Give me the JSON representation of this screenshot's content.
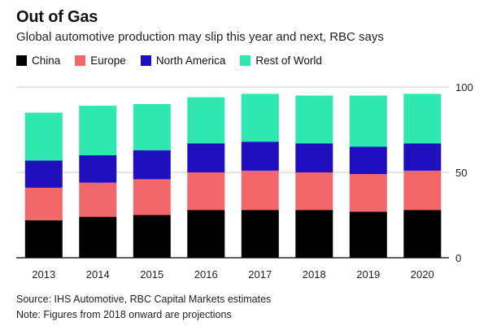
{
  "header": {
    "title": "Out of Gas",
    "subtitle": "Global automotive production may slip this year and next, RBC says"
  },
  "colors": {
    "China": "#000000",
    "Europe": "#f2686a",
    "North America": "#1f0fbf",
    "Rest of World": "#2ee8b0",
    "gridline": "#cccccc",
    "axis": "#000000"
  },
  "footer": {
    "source": "Source: IHS Automotive, RBC Capital Markets estimates",
    "note": "Note: Figures from 2018 onward are projections"
  },
  "chart_data": {
    "type": "bar",
    "stacked": true,
    "categories": [
      "2013",
      "2014",
      "2015",
      "2016",
      "2017",
      "2018",
      "2019",
      "2020"
    ],
    "series": [
      {
        "name": "China",
        "values": [
          22,
          24,
          25,
          28,
          28,
          28,
          27,
          28
        ]
      },
      {
        "name": "Europe",
        "values": [
          19,
          20,
          21,
          22,
          23,
          22,
          22,
          23
        ]
      },
      {
        "name": "North America",
        "values": [
          16,
          16,
          17,
          17,
          17,
          17,
          16,
          16
        ]
      },
      {
        "name": "Rest of World",
        "values": [
          28,
          29,
          27,
          27,
          28,
          28,
          30,
          29
        ]
      }
    ],
    "title": "",
    "xlabel": "",
    "ylabel": "",
    "ylim": [
      0,
      100
    ],
    "yticks": [
      0,
      50,
      100
    ],
    "y_axis_side": "right",
    "grid": true,
    "legend": "top-left"
  }
}
